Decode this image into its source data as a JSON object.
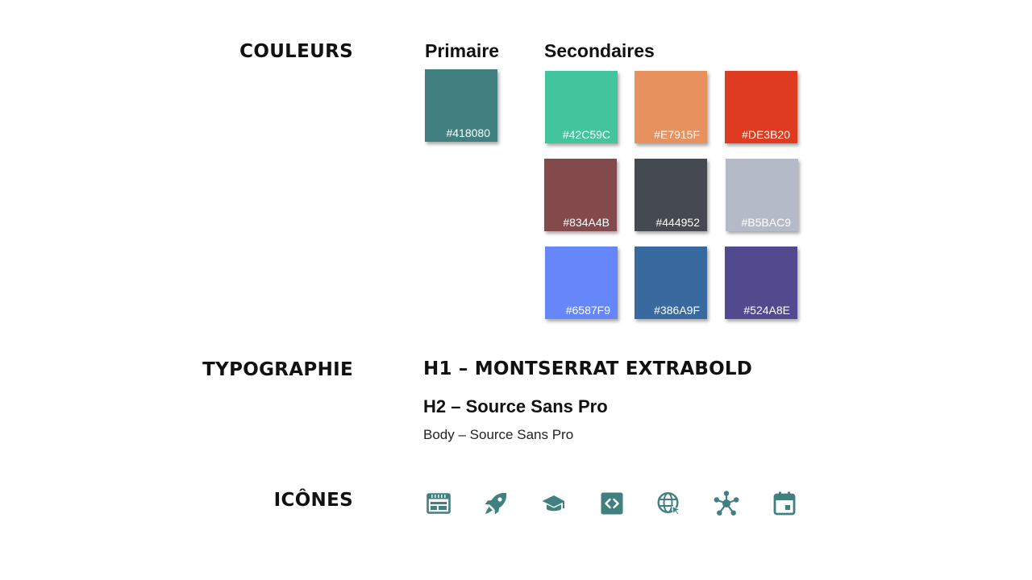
{
  "sections": {
    "colors": "COULEURS",
    "typography": "TYPOGRAPHIE",
    "icons": "ICÔNES"
  },
  "colors": {
    "primary_label": "Primaire",
    "secondary_label": "Secondaires",
    "primary": {
      "hex": "#418080",
      "label": "#418080"
    },
    "secondary": [
      {
        "hex": "#42C59C",
        "label": "#42C59C"
      },
      {
        "hex": "#E7915F",
        "label": "#E7915F"
      },
      {
        "hex": "#DE3B20",
        "label": "#DE3B20"
      },
      {
        "hex": "#834A4B",
        "label": "#834A4B"
      },
      {
        "hex": "#444952",
        "label": "#444952"
      },
      {
        "hex": "#B5BAC9",
        "label": "#B5BAC9"
      },
      {
        "hex": "#6587F9",
        "label": "#6587F9"
      },
      {
        "hex": "#386A9F",
        "label": "#386A9F"
      },
      {
        "hex": "#524A8E",
        "label": "#524A8E"
      }
    ]
  },
  "typography": {
    "h1": "H1 – MONTSERRAT EXTRABOLD",
    "h2": "H2 – Source Sans Pro",
    "body": "Body – Source Sans Pro"
  },
  "icons": {
    "color": "#418080",
    "items": [
      "browser-layout-icon",
      "rocket-icon",
      "graduation-cap-icon",
      "code-icon",
      "web-cursor-icon",
      "network-hub-icon",
      "calendar-event-icon"
    ]
  }
}
